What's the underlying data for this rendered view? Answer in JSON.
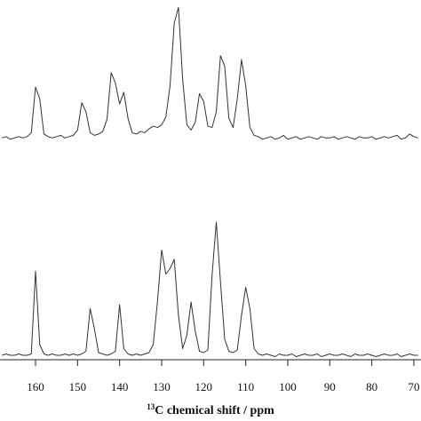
{
  "chart_data": [
    {
      "type": "line",
      "xlim": [
        168.45,
        68.3
      ],
      "ylim": [
        -10,
        105
      ],
      "x": [
        168,
        167,
        166,
        165,
        164,
        163,
        162,
        161,
        160,
        159,
        158,
        157,
        156,
        155,
        154,
        153,
        152,
        151,
        150,
        149,
        148,
        147,
        146,
        145,
        144,
        143,
        142,
        141,
        140,
        139,
        138,
        137,
        136,
        135,
        134,
        133,
        132,
        131,
        130,
        129,
        128,
        127,
        126,
        125,
        124,
        123,
        122,
        121,
        120,
        119,
        118,
        117,
        116,
        115,
        114,
        113,
        112,
        111,
        110,
        109,
        108,
        107,
        106,
        105,
        104,
        103,
        102,
        101,
        100,
        99,
        98,
        97,
        96,
        95,
        94,
        93,
        92,
        91,
        90,
        89,
        88,
        87,
        86,
        85,
        84,
        83,
        82,
        81,
        80,
        79,
        78,
        77,
        76,
        75,
        74,
        73,
        72,
        71,
        70,
        69
      ],
      "series": [
        {
          "color": "#333333",
          "values": [
            0,
            1,
            -1,
            0,
            1,
            0,
            1,
            4,
            39,
            30,
            3,
            1,
            0,
            1,
            2,
            0,
            1,
            2,
            6,
            27,
            20,
            4,
            2,
            3,
            5,
            14,
            50,
            42,
            26,
            35,
            15,
            4,
            3,
            5,
            4,
            7,
            9,
            8,
            10,
            16,
            40,
            88,
            100,
            45,
            10,
            6,
            12,
            34,
            28,
            9,
            8,
            20,
            63,
            55,
            15,
            8,
            30,
            60,
            40,
            8,
            2,
            1,
            -1,
            0,
            1,
            -1,
            0,
            2,
            -1,
            0,
            1,
            -1,
            0,
            1,
            0,
            -1,
            1,
            0,
            0,
            1,
            -1,
            0,
            1,
            0,
            -1,
            1,
            0,
            0,
            1,
            -1,
            0,
            1,
            0,
            1,
            2,
            -1,
            0,
            3,
            1,
            0
          ]
        }
      ]
    },
    {
      "type": "line",
      "xlim": [
        168.45,
        68.3
      ],
      "ylim": [
        -3,
        102
      ],
      "x": [
        168,
        167,
        166,
        165,
        164,
        163,
        162,
        161,
        160,
        159,
        158,
        157,
        156,
        155,
        154,
        153,
        152,
        151,
        150,
        149,
        148,
        147,
        146,
        145,
        144,
        143,
        142,
        141,
        140,
        139,
        138,
        137,
        136,
        135,
        134,
        133,
        132,
        131,
        130,
        129,
        128,
        127,
        126,
        125,
        124,
        123,
        122,
        121,
        120,
        119,
        118,
        117,
        116,
        115,
        114,
        113,
        112,
        111,
        110,
        109,
        108,
        107,
        106,
        105,
        104,
        103,
        102,
        101,
        100,
        99,
        98,
        97,
        96,
        95,
        94,
        93,
        92,
        91,
        90,
        89,
        88,
        87,
        86,
        85,
        84,
        83,
        82,
        81,
        80,
        79,
        78,
        77,
        76,
        75,
        74,
        73,
        72,
        71,
        70,
        69
      ],
      "series": [
        {
          "color": "#333333",
          "values": [
            0,
            1,
            0,
            0,
            1,
            0,
            0,
            1,
            63,
            8,
            1,
            0,
            1,
            0,
            0,
            1,
            0,
            1,
            0,
            1,
            3,
            35,
            20,
            2,
            1,
            0,
            1,
            3,
            38,
            5,
            1,
            0,
            1,
            0,
            1,
            2,
            8,
            40,
            79,
            61,
            65,
            72,
            30,
            5,
            15,
            40,
            18,
            3,
            2,
            4,
            60,
            100,
            55,
            12,
            3,
            2,
            4,
            30,
            51,
            35,
            5,
            1,
            0,
            1,
            0,
            -1,
            1,
            0,
            0,
            1,
            -1,
            0,
            1,
            0,
            0,
            1,
            -1,
            0,
            1,
            0,
            0,
            1,
            0,
            -1,
            1,
            0,
            0,
            1,
            0,
            -1,
            0,
            1,
            0,
            0,
            1,
            -1,
            0,
            1,
            0,
            0
          ]
        }
      ],
      "xticks": [
        160,
        150,
        140,
        130,
        120,
        110,
        100,
        90,
        80,
        70
      ],
      "xlabel_sup": "13",
      "xlabel": "C chemical shift / ppm"
    }
  ]
}
